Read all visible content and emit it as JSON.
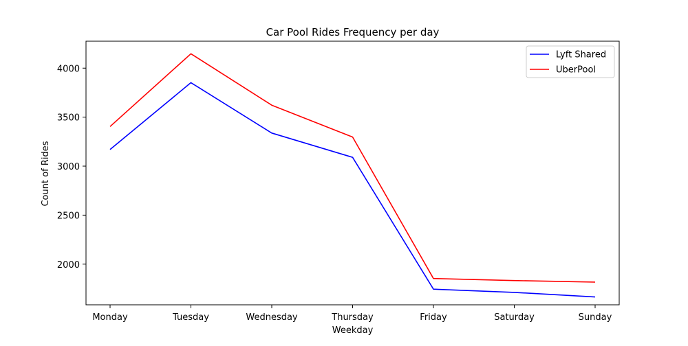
{
  "chart_data": {
    "type": "line",
    "title": "Car Pool Rides Frequency per day",
    "xlabel": "Weekday",
    "ylabel": "Count of Rides",
    "categories": [
      "Monday",
      "Tuesday",
      "Wednesday",
      "Thursday",
      "Friday",
      "Saturday",
      "Sunday"
    ],
    "series": [
      {
        "name": "Lyft Shared",
        "color": "#0000ff",
        "values": [
          3170,
          3852,
          3338,
          3090,
          1745,
          1712,
          1665
        ]
      },
      {
        "name": "UberPool",
        "color": "#ff0000",
        "values": [
          3404,
          4147,
          3622,
          3297,
          1853,
          1832,
          1817
        ]
      }
    ],
    "yticks": [
      2000,
      2500,
      3000,
      3500,
      4000
    ],
    "ylim": [
      1585,
      4275
    ],
    "grid": false,
    "legend_position": "top-right"
  }
}
